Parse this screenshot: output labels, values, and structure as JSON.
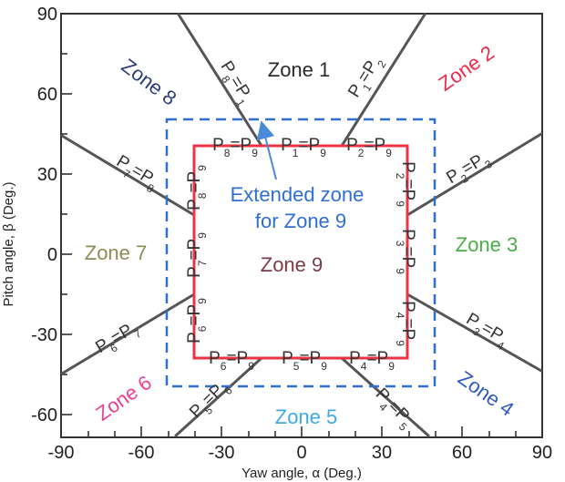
{
  "axes": {
    "xlabel": "Yaw angle, α (Deg.)",
    "ylabel": "Pitch angle, β (Deg.)",
    "xlim": [
      -90,
      90
    ],
    "ylim": [
      -70,
      90
    ],
    "xticks": [
      "-90",
      "-60",
      "-30",
      "0",
      "30",
      "60",
      "90"
    ],
    "yticks": [
      "90",
      "60",
      "30",
      "0",
      "-30",
      "-60"
    ]
  },
  "zones": {
    "z1": "Zone 1",
    "z2": "Zone 2",
    "z3": "Zone 3",
    "z4": "Zone 4",
    "z5": "Zone 5",
    "z6": "Zone 6",
    "z7": "Zone 7",
    "z8": "Zone 8",
    "z9": "Zone 9"
  },
  "zone_colors": {
    "z1": "#2a2a2a",
    "z2": "#ee2a4a",
    "z3": "#4aae4a",
    "z4": "#2f59c8",
    "z5": "#3fa9e6",
    "z6": "#ec3f8f",
    "z7": "#8c8c52",
    "z8": "#2c3b7a",
    "z9": "#7a3a48"
  },
  "extended_zone": {
    "line1": "Extended zone",
    "line2": "for Zone 9",
    "color": "#2e6fd1"
  },
  "zone9_border_color": "#ee3344",
  "boundary_labels": {
    "p1p9": {
      "a": "P",
      "a_sub": "1",
      "b": "P",
      "b_sub": "9"
    },
    "p2p9": {
      "a": "P",
      "a_sub": "2",
      "b": "P",
      "b_sub": "9"
    },
    "p8p9": {
      "a": "P",
      "a_sub": "8",
      "b": "P",
      "b_sub": "9"
    },
    "p4p9": {
      "a": "P",
      "a_sub": "4",
      "b": "P",
      "b_sub": "9"
    },
    "p5p9": {
      "a": "P",
      "a_sub": "5",
      "b": "P",
      "b_sub": "9"
    },
    "p6p9": {
      "a": "P",
      "a_sub": "6",
      "b": "P",
      "b_sub": "9"
    },
    "p2p9_right": {
      "a": "P",
      "a_sub": "2",
      "b": "P",
      "b_sub": "9"
    },
    "p3p9_right": {
      "a": "P",
      "a_sub": "3",
      "b": "P",
      "b_sub": "9"
    },
    "p4p9_right": {
      "a": "P",
      "a_sub": "4",
      "b": "P",
      "b_sub": "9"
    },
    "p8p9_left": {
      "a": "P",
      "a_sub": "8",
      "b": "P",
      "b_sub": "9"
    },
    "p7p9_left": {
      "a": "P",
      "a_sub": "7",
      "b": "P",
      "b_sub": "9"
    },
    "p6p9_left": {
      "a": "P",
      "a_sub": "6",
      "b": "P",
      "b_sub": "9"
    },
    "p1p2": {
      "a": "P",
      "a_sub": "1",
      "b": "P",
      "b_sub": "2"
    },
    "p8p1": {
      "a": "P",
      "a_sub": "8",
      "b": "P",
      "b_sub": "1"
    },
    "p2p3": {
      "a": "P",
      "a_sub": "2",
      "b": "P",
      "b_sub": "3"
    },
    "p3p4": {
      "a": "P",
      "a_sub": "3",
      "b": "P",
      "b_sub": "4"
    },
    "p4p5": {
      "a": "P",
      "a_sub": "4",
      "b": "P",
      "b_sub": "5"
    },
    "p5p6": {
      "a": "P",
      "a_sub": "5",
      "b": "P",
      "b_sub": "6"
    },
    "p6p7": {
      "a": "P",
      "a_sub": "6",
      "b": "P",
      "b_sub": "7"
    },
    "p7p8": {
      "a": "P",
      "a_sub": "7",
      "b": "P",
      "b_sub": "8"
    }
  }
}
